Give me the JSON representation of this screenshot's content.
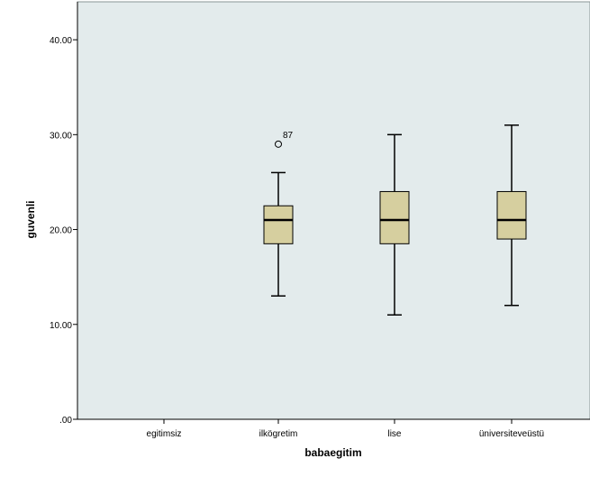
{
  "chart_data": {
    "type": "boxplot",
    "xlabel": "babaegitim",
    "ylabel": "guvenli",
    "ylim": [
      0,
      44
    ],
    "yticks": [
      0,
      10,
      20,
      30,
      40
    ],
    "ytick_labels": [
      ".00",
      "10.00",
      "20.00",
      "30.00",
      "40.00"
    ],
    "categories": [
      "egitimsiz",
      "ilkögretim",
      "lise",
      "üniversiteveüstü"
    ],
    "boxes": [
      null,
      {
        "min": 13,
        "q1": 18.5,
        "median": 21,
        "q3": 22.5,
        "max": 26,
        "outliers": [
          {
            "value": 29,
            "label": "87"
          }
        ]
      },
      {
        "min": 11,
        "q1": 18.5,
        "median": 21,
        "q3": 24,
        "max": 30,
        "outliers": []
      },
      {
        "min": 12,
        "q1": 19,
        "median": 21,
        "q3": 24,
        "max": 31,
        "outliers": []
      }
    ],
    "grid": false
  },
  "colors": {
    "plot_background": "#e3ebec",
    "box_fill": "#d6cf9f",
    "stroke": "#000000",
    "page_background": "#ffffff"
  }
}
